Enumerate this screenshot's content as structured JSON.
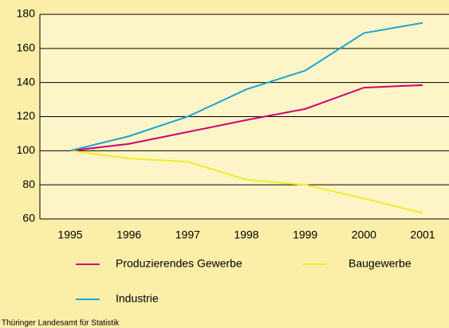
{
  "chart_data": {
    "type": "line",
    "categories": [
      "1995",
      "1996",
      "1997",
      "1998",
      "1999",
      "2000",
      "2001"
    ],
    "series": [
      {
        "name": "Produzierendes Gewerbe",
        "color": "#d1006f",
        "values": [
          100,
          104,
          111,
          118,
          124.5,
          137,
          138.5
        ]
      },
      {
        "name": "Baugewerbe",
        "color": "#f3ec2a",
        "values": [
          100,
          95.5,
          93.5,
          83,
          80,
          72,
          63.5
        ]
      },
      {
        "name": "Industrie",
        "color": "#1ea3d5",
        "values": [
          100,
          108.5,
          120,
          136,
          147,
          169,
          175
        ]
      }
    ],
    "ylim": [
      60,
      180
    ],
    "yticks": [
      60,
      80,
      100,
      120,
      140,
      160,
      180
    ],
    "grid": true,
    "source": "Thüringer Landesamt für Statistik"
  }
}
